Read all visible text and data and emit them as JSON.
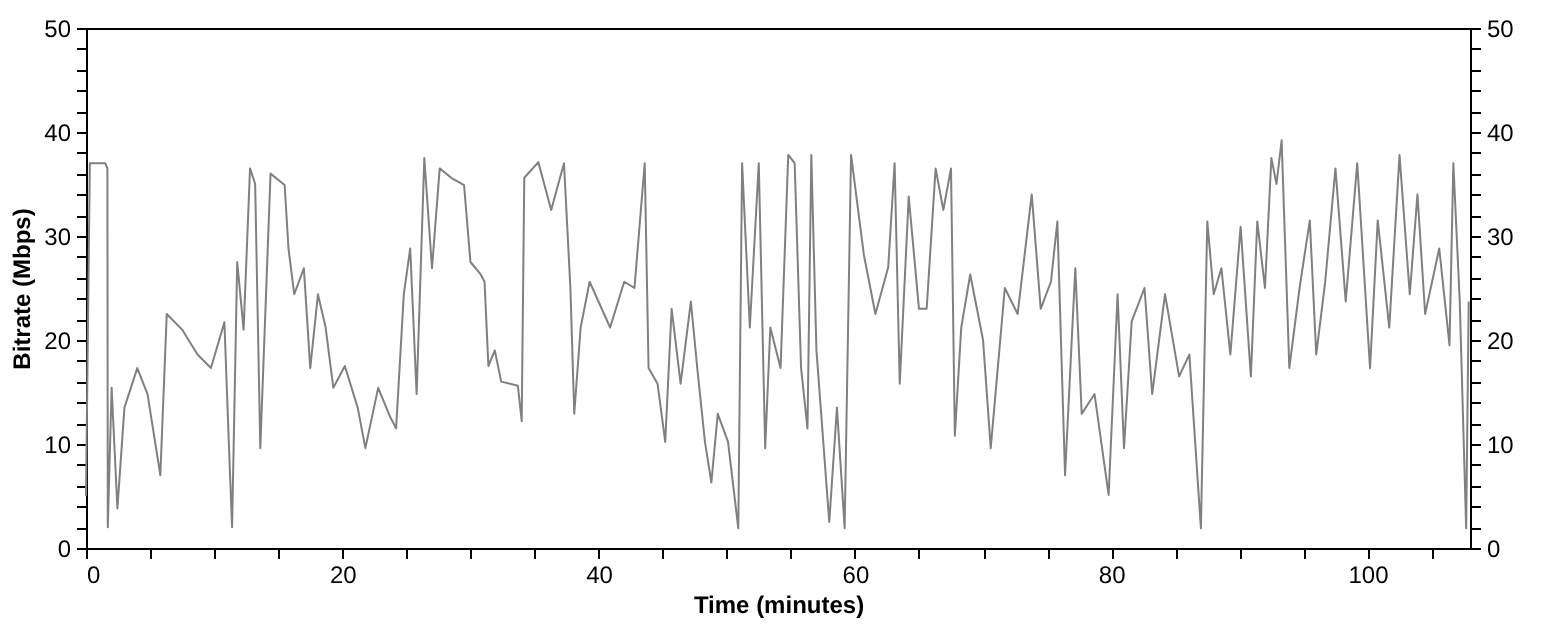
{
  "chart_data": {
    "type": "line",
    "xlabel": "Time (minutes)",
    "ylabel": "Bitrate (Mbps)",
    "x": [
      0,
      0.3,
      1.5,
      1.67,
      1.7,
      2,
      2.45,
      3,
      4,
      4.8,
      5.8,
      6.3,
      7.5,
      8.7,
      9.75,
      10.8,
      11.2,
      11.4,
      11.8,
      12.3,
      12.8,
      13.2,
      13.6,
      14.4,
      15.5,
      15.8,
      16.25,
      17,
      17.5,
      18.1,
      18.7,
      19.3,
      20.2,
      21.2,
      21.8,
      22.8,
      23.7,
      24.2,
      24.8,
      25.3,
      25.8,
      26.4,
      27,
      27.6,
      28.5,
      29.5,
      30,
      30.8,
      31.1,
      31.4,
      31.9,
      32.4,
      33.7,
      34,
      34.2,
      35.3,
      36.3,
      37.3,
      37.8,
      38.1,
      38.6,
      39.3,
      40.9,
      42,
      42.8,
      43.6,
      43.9,
      44.6,
      45.2,
      45.7,
      46.4,
      47.2,
      47.7,
      48.3,
      48.8,
      49.3,
      50.1,
      50.9,
      51.2,
      51.8,
      52.5,
      53,
      53.4,
      54.2,
      54.8,
      55.3,
      55.8,
      56.3,
      56.6,
      57,
      58,
      58.6,
      59.2,
      59.7,
      60.7,
      61.6,
      62.6,
      63.1,
      63.5,
      64.2,
      65,
      65.6,
      66.3,
      66.9,
      67.5,
      67.8,
      68.3,
      69,
      70,
      70.6,
      71.7,
      72.7,
      73.8,
      74.5,
      75.3,
      75.8,
      76.4,
      77.2,
      77.7,
      78.7,
      79.8,
      80.5,
      81,
      81.6,
      82.6,
      83.2,
      84.2,
      85.3,
      86.1,
      87,
      87.5,
      88,
      88.6,
      89.3,
      90.1,
      90.9,
      91.4,
      92,
      92.5,
      92.9,
      93.3,
      93.9,
      94.7,
      95.5,
      96,
      96.7,
      97.5,
      98.3,
      99.2,
      100.2,
      100.8,
      101.7,
      102.5,
      103.3,
      103.9,
      104.5,
      105.6,
      106.4,
      106.7,
      107.2,
      107.7,
      107.9
    ],
    "series": [
      {
        "color": "#808080",
        "values": [
          5,
          37,
          37,
          36.5,
          2,
          15.4,
          3.8,
          13.5,
          17.3,
          14.8,
          7,
          22.5,
          21,
          18.6,
          17.3,
          21.7,
          8.3,
          2,
          27.5,
          21,
          36.5,
          35,
          9.6,
          36,
          34.9,
          28.8,
          24.4,
          26.9,
          17.3,
          24.4,
          21.2,
          15.4,
          17.5,
          13.5,
          9.6,
          15.4,
          12.7,
          11.5,
          24.4,
          28.8,
          14.8,
          37.5,
          26.9,
          36.5,
          35.6,
          34.9,
          27.5,
          26.3,
          25.6,
          17.5,
          19,
          16,
          15.6,
          12.2,
          35.6,
          37.1,
          32.5,
          37,
          25,
          12.9,
          21.2,
          25.6,
          21.2,
          25.6,
          25,
          37,
          17.3,
          15.8,
          10.2,
          23,
          15.8,
          23.7,
          17.3,
          10.2,
          6.3,
          12.9,
          10.2,
          1.9,
          37,
          21.2,
          37,
          9.6,
          21.2,
          17.3,
          37.8,
          37,
          17.3,
          11.5,
          37.8,
          19,
          2.5,
          13.5,
          1.9,
          37.8,
          28.2,
          22.5,
          27,
          37,
          15.8,
          33.8,
          23,
          23,
          36.5,
          32.5,
          36.5,
          10.8,
          21.2,
          26.3,
          20,
          9.6,
          25,
          22.5,
          34,
          23,
          25.6,
          31.4,
          7,
          26.9,
          12.9,
          14.8,
          5.1,
          24.4,
          9.6,
          21.8,
          25,
          14.8,
          24.4,
          16.5,
          18.6,
          1.9,
          31.4,
          24.4,
          26.9,
          18.6,
          30.9,
          16.5,
          31.4,
          25,
          37.5,
          35,
          39.2,
          17.3,
          25,
          31.5,
          18.6,
          25.6,
          36.5,
          23.7,
          37,
          17.3,
          31.5,
          21.2,
          37.8,
          24.4,
          34,
          22.5,
          28.8,
          19.5,
          37,
          23.7,
          1.9,
          23.7
        ]
      }
    ],
    "xlim": [
      0,
      108
    ],
    "xticks": [
      0,
      {
        "value": 5,
        "label": null
      },
      {
        "value": 10,
        "label": null
      },
      {
        "value": 15,
        "label": null
      },
      20,
      {
        "value": 25,
        "label": null
      },
      {
        "value": 30,
        "label": null
      },
      {
        "value": 35,
        "label": null
      },
      40,
      {
        "value": 45,
        "label": null
      },
      {
        "value": 50,
        "label": null
      },
      {
        "value": 55,
        "label": null
      },
      60,
      {
        "value": 65,
        "label": null
      },
      {
        "value": 70,
        "label": null
      },
      {
        "value": 75,
        "label": null
      },
      80,
      {
        "value": 85,
        "label": null
      },
      {
        "value": 90,
        "label": null
      },
      {
        "value": 95,
        "label": null
      },
      100,
      {
        "value": 105,
        "label": null
      }
    ],
    "ylim": [
      0,
      50
    ],
    "yticks": [
      0,
      {
        "value": 2,
        "label": null
      },
      {
        "value": 4,
        "label": null
      },
      {
        "value": 6,
        "label": null
      },
      {
        "value": 8,
        "label": null
      },
      10,
      {
        "value": 12,
        "label": null
      },
      {
        "value": 14,
        "label": null
      },
      {
        "value": 16,
        "label": null
      },
      {
        "value": 18,
        "label": null
      },
      20,
      {
        "value": 22,
        "label": null
      },
      {
        "value": 24,
        "label": null
      },
      {
        "value": 26,
        "label": null
      },
      {
        "value": 28,
        "label": null
      },
      30,
      {
        "value": 32,
        "label": null
      },
      {
        "value": 34,
        "label": null
      },
      {
        "value": 36,
        "label": null
      },
      {
        "value": 38,
        "label": null
      },
      40,
      {
        "value": 42,
        "label": null
      },
      {
        "value": 44,
        "label": null
      },
      {
        "value": 46,
        "label": null
      },
      {
        "value": 48,
        "label": null
      },
      50
    ],
    "y2lim": [
      0,
      50
    ],
    "y2ticks": [
      0,
      {
        "value": 2,
        "label": null
      },
      {
        "value": 4,
        "label": null
      },
      {
        "value": 6,
        "label": null
      },
      {
        "value": 8,
        "label": null
      },
      10,
      {
        "value": 12,
        "label": null
      },
      {
        "value": 14,
        "label": null
      },
      {
        "value": 16,
        "label": null
      },
      {
        "value": 18,
        "label": null
      },
      20,
      {
        "value": 22,
        "label": null
      },
      {
        "value": 24,
        "label": null
      },
      {
        "value": 26,
        "label": null
      },
      {
        "value": 28,
        "label": null
      },
      30,
      {
        "value": 32,
        "label": null
      },
      {
        "value": 34,
        "label": null
      },
      {
        "value": 36,
        "label": null
      },
      {
        "value": 38,
        "label": null
      },
      40,
      {
        "value": 42,
        "label": null
      },
      {
        "value": 44,
        "label": null
      },
      {
        "value": 46,
        "label": null
      },
      {
        "value": 48,
        "label": null
      },
      50
    ],
    "grid": false,
    "line_style": "solid"
  }
}
